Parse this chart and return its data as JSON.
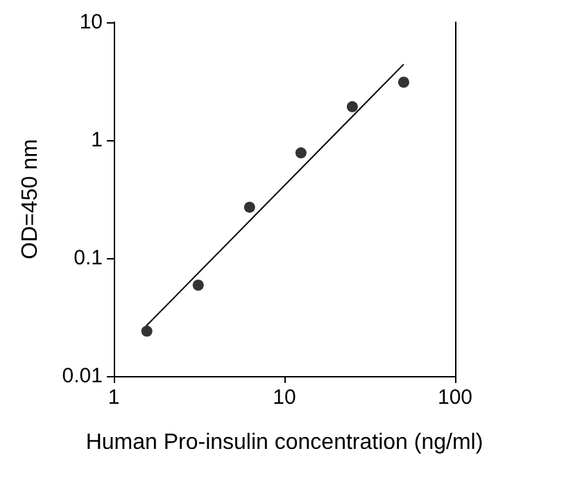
{
  "chart_data": {
    "type": "scatter",
    "xlabel": "Human Pro-insulin concentration (ng/ml)",
    "ylabel": "OD=450 nm",
    "log": "xy",
    "xlim": [
      1,
      100
    ],
    "xticks": [
      1,
      10,
      100
    ],
    "ylim": [
      0.01,
      10
    ],
    "yticks": [
      0.01,
      0.1,
      1,
      10
    ],
    "grid": false,
    "marker": "circle",
    "x": [
      1.5625,
      3.125,
      6.25,
      12.5,
      25,
      50
    ],
    "series": [
      {
        "color": "#000000",
        "values": [
          0.024,
          0.059,
          0.27,
          0.78,
          1.92,
          3.1
        ]
      },
      {
        "type": "line",
        "color": "#000000",
        "x": [
          1.55,
          50
        ],
        "values": [
          0.0266,
          4.4
        ],
        "marker": "none",
        "line_style": "solid"
      }
    ]
  }
}
